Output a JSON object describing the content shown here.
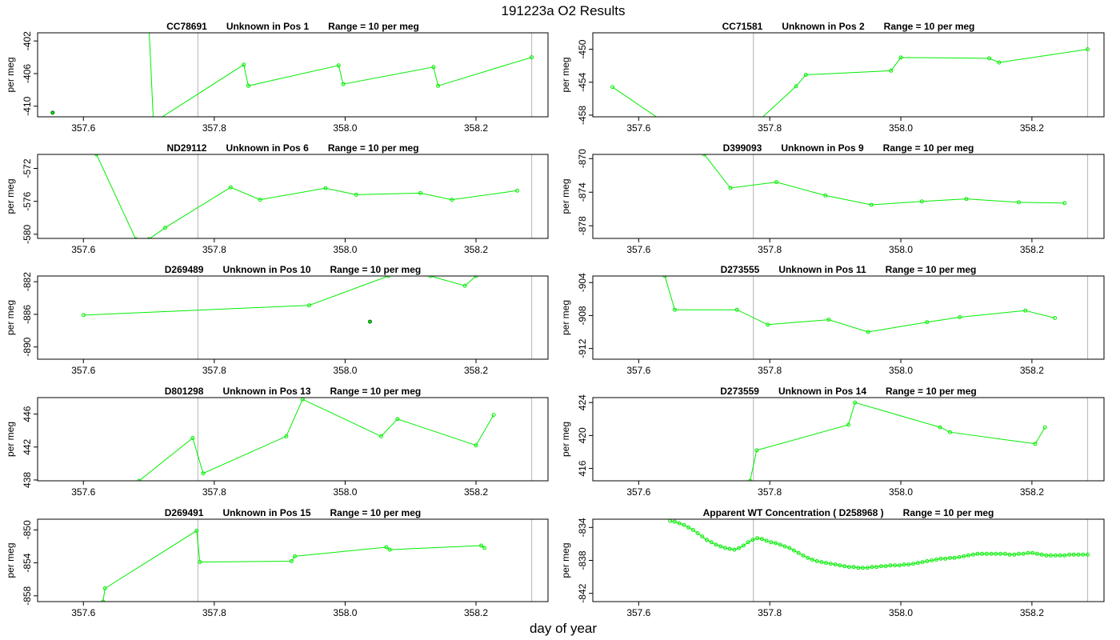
{
  "page": {
    "title": "191223a  O2 Results",
    "xlabel": "day of year"
  },
  "colors": {
    "series": "#00ee00",
    "frame": "#000000",
    "marker_line": "#bebebe",
    "text": "#000000"
  },
  "chart_data": [
    {
      "type": "line",
      "title": {
        "id": "CC78691",
        "pos": "Unknown in Pos 1",
        "range": "Range = 10 per meg"
      },
      "ylabel": "per meg",
      "xlim": [
        357.53,
        358.31
      ],
      "ylim": [
        -411.3,
        -401.0
      ],
      "xticks": [
        357.6,
        357.8,
        358.0,
        358.2
      ],
      "xtick_labels": [
        "357.6",
        "357.8",
        "358.0",
        "358.2"
      ],
      "yticks": [
        -410,
        -406,
        -402
      ],
      "ytick_labels": [
        "-410",
        "-406",
        "-402"
      ],
      "vlines": [
        357.775,
        358.285
      ],
      "x": [
        357.7,
        357.707,
        357.845,
        357.852,
        357.99,
        357.997,
        358.135,
        358.142,
        358.285
      ],
      "y": [
        -400,
        -412,
        -404.9,
        -407.5,
        -405,
        -407.3,
        -405.2,
        -407.5,
        -404
      ],
      "outliers": [
        {
          "x": 357.553,
          "y": -410.8
        }
      ]
    },
    {
      "type": "line",
      "title": {
        "id": "CC71581",
        "pos": "Unknown in Pos 2",
        "range": "Range = 10 per meg"
      },
      "ylabel": "per meg",
      "xlim": [
        357.53,
        358.31
      ],
      "ylim": [
        -458.2,
        -448.0
      ],
      "xticks": [
        357.6,
        357.8,
        358.0,
        358.2
      ],
      "xtick_labels": [
        "357.6",
        "357.8",
        "358.0",
        "358.2"
      ],
      "yticks": [
        -458,
        -454,
        -450
      ],
      "ytick_labels": [
        "-458",
        "-454",
        "-450"
      ],
      "vlines": [
        357.775,
        358.285
      ],
      "x": [
        357.56,
        357.64,
        357.78,
        357.84,
        357.855,
        357.985,
        358.0,
        358.135,
        358.15,
        358.285
      ],
      "y": [
        -454.6,
        -458.9,
        -458.9,
        -454.5,
        -453.1,
        -452.6,
        -451.0,
        -451.1,
        -451.6,
        -450.0
      ]
    },
    {
      "type": "line",
      "title": {
        "id": "ND29112",
        "pos": "Unknown in Pos 6",
        "range": "Range = 10 per meg"
      },
      "ylabel": "per meg",
      "xlim": [
        357.53,
        358.31
      ],
      "ylim": [
        -580.5,
        -570.3
      ],
      "xticks": [
        357.6,
        357.8,
        358.0,
        358.2
      ],
      "xtick_labels": [
        "357.6",
        "357.8",
        "358.0",
        "358.2"
      ],
      "yticks": [
        -580,
        -576,
        -572
      ],
      "ytick_labels": [
        "-580",
        "-576",
        "-572"
      ],
      "vlines": [
        357.775,
        358.285
      ],
      "x": [
        357.62,
        357.68,
        357.7,
        357.725,
        357.825,
        357.87,
        357.97,
        358.017,
        358.115,
        358.163,
        358.263
      ],
      "y": [
        -570.3,
        -580.6,
        -580.6,
        -579.2,
        -574.3,
        -575.8,
        -574.4,
        -575.2,
        -575.0,
        -575.8,
        -574.7
      ]
    },
    {
      "type": "line",
      "title": {
        "id": "D399093",
        "pos": "Unknown in Pos 9",
        "range": "Range = 10 per meg"
      },
      "ylabel": "per meg",
      "xlim": [
        357.53,
        358.31
      ],
      "ylim": [
        -879.5,
        -869.5
      ],
      "xticks": [
        357.6,
        357.8,
        358.0,
        358.2
      ],
      "xtick_labels": [
        "357.6",
        "357.8",
        "358.0",
        "358.2"
      ],
      "yticks": [
        -878,
        -874,
        -870
      ],
      "ytick_labels": [
        "-878",
        "-874",
        "-870"
      ],
      "vlines": [
        357.775,
        358.285
      ],
      "x": [
        357.7,
        357.74,
        357.81,
        357.885,
        357.955,
        358.032,
        358.1,
        358.18,
        358.25
      ],
      "y": [
        -869.5,
        -873.5,
        -872.8,
        -874.4,
        -875.5,
        -875.1,
        -874.8,
        -875.2,
        -875.3
      ]
    },
    {
      "type": "line",
      "title": {
        "id": "D269489",
        "pos": "Unknown in Pos 10",
        "range": "Range = 10 per meg"
      },
      "ylabel": "per meg",
      "xlim": [
        357.53,
        358.31
      ],
      "ylim": [
        -891.5,
        -881.3
      ],
      "xticks": [
        357.6,
        357.8,
        358.0,
        358.2
      ],
      "xtick_labels": [
        "357.6",
        "357.8",
        "358.0",
        "358.2"
      ],
      "yticks": [
        -890,
        -886,
        -882
      ],
      "ytick_labels": [
        "-890",
        "-886",
        "-882"
      ],
      "vlines": [
        357.775,
        358.285
      ],
      "x": [
        357.6,
        357.945,
        358.066,
        358.13,
        358.183,
        358.2
      ],
      "y": [
        -886.1,
        -884.9,
        -881.3,
        -881.3,
        -882.5,
        -881.3
      ],
      "outliers": [
        {
          "x": 358.038,
          "y": -886.9
        }
      ]
    },
    {
      "type": "line",
      "title": {
        "id": "D273555",
        "pos": "Unknown in Pos 11",
        "range": "Range = 10 per meg"
      },
      "ylabel": "per meg",
      "xlim": [
        357.53,
        358.31
      ],
      "ylim": [
        -913.3,
        -903.2
      ],
      "xticks": [
        357.6,
        357.8,
        358.0,
        358.2
      ],
      "xtick_labels": [
        "357.6",
        "357.8",
        "358.0",
        "358.2"
      ],
      "yticks": [
        -912,
        -908,
        -904
      ],
      "ytick_labels": [
        "-912",
        "-908",
        "-904"
      ],
      "vlines": [
        357.775,
        358.285
      ],
      "x": [
        357.64,
        357.655,
        357.75,
        357.797,
        357.89,
        357.95,
        358.04,
        358.09,
        358.19,
        358.235
      ],
      "y": [
        -903.2,
        -907.3,
        -907.3,
        -909.1,
        -908.5,
        -910.0,
        -908.8,
        -908.2,
        -907.4,
        -908.3
      ]
    },
    {
      "type": "line",
      "title": {
        "id": "D801298",
        "pos": "Unknown in Pos 13",
        "range": "Range = 10 per meg"
      },
      "ylabel": "per meg",
      "xlim": [
        357.53,
        358.31
      ],
      "ylim": [
        437.9,
        448.0
      ],
      "xticks": [
        357.6,
        357.8,
        358.0,
        358.2
      ],
      "xtick_labels": [
        "357.6",
        "357.8",
        "358.0",
        "358.2"
      ],
      "yticks": [
        438,
        442,
        446
      ],
      "ytick_labels": [
        "438",
        "442",
        "446"
      ],
      "vlines": [
        357.775,
        358.285
      ],
      "x": [
        357.685,
        357.767,
        357.783,
        357.91,
        357.935,
        358.055,
        358.08,
        358.2,
        358.227
      ],
      "y": [
        437.9,
        443.1,
        438.8,
        443.3,
        447.8,
        443.3,
        445.4,
        442.2,
        445.9
      ]
    },
    {
      "type": "line",
      "title": {
        "id": "D273559",
        "pos": "Unknown in Pos 14",
        "range": "Range = 10 per meg"
      },
      "ylabel": "per meg",
      "xlim": [
        357.53,
        358.31
      ],
      "ylim": [
        414.5,
        424.6
      ],
      "xticks": [
        357.6,
        357.8,
        358.0,
        358.2
      ],
      "xtick_labels": [
        "357.6",
        "357.8",
        "358.0",
        "358.2"
      ],
      "yticks": [
        416,
        420,
        424
      ],
      "ytick_labels": [
        "416",
        "420",
        "424"
      ],
      "vlines": [
        357.775,
        358.285
      ],
      "x": [
        357.77,
        357.78,
        357.92,
        357.93,
        358.06,
        358.075,
        358.205,
        358.22
      ],
      "y": [
        414.5,
        418.2,
        421.3,
        424.0,
        421.0,
        420.4,
        419.0,
        421.0
      ]
    },
    {
      "type": "line",
      "title": {
        "id": "D269491",
        "pos": "Unknown in Pos 15",
        "range": "Range = 10 per meg"
      },
      "ylabel": "per meg",
      "xlim": [
        357.53,
        358.31
      ],
      "ylim": [
        -858.7,
        -848.7
      ],
      "xticks": [
        357.6,
        357.8,
        358.0,
        358.2
      ],
      "xtick_labels": [
        "357.6",
        "357.8",
        "358.0",
        "358.2"
      ],
      "yticks": [
        -858,
        -854,
        -850
      ],
      "ytick_labels": [
        "-858",
        "-854",
        "-850"
      ],
      "vlines": [
        357.775,
        358.285
      ],
      "x": [
        357.63,
        357.633,
        357.773,
        357.778,
        357.918,
        357.923,
        358.063,
        358.068,
        358.208,
        358.213
      ],
      "y": [
        -858.7,
        -857.1,
        -850.1,
        -853.9,
        -853.8,
        -853.2,
        -852.1,
        -852.4,
        -851.9,
        -852.2
      ]
    },
    {
      "type": "line",
      "title": {
        "id": "Apparent WT Concentration ( D258968 )",
        "pos": "",
        "range": "Range = 10 per meg"
      },
      "ylabel": "per meg",
      "xlim": [
        357.53,
        358.31
      ],
      "ylim": [
        -843.0,
        -833.0
      ],
      "xticks": [
        357.6,
        357.8,
        358.0,
        358.2
      ],
      "xtick_labels": [
        "357.6",
        "357.8",
        "358.0",
        "358.2"
      ],
      "yticks": [
        -842,
        -838,
        -834
      ],
      "ytick_labels": [
        "-842",
        "-838",
        "-834"
      ],
      "vlines": [
        357.775,
        358.285
      ],
      "x": [
        357.648,
        357.655,
        357.662,
        357.669,
        357.676,
        357.683,
        357.69,
        357.697,
        357.704,
        357.711,
        357.718,
        357.725,
        357.732,
        357.739,
        357.746,
        357.753,
        357.76,
        357.767,
        357.774,
        357.781,
        357.788,
        357.795,
        357.802,
        357.809,
        357.816,
        357.823,
        357.83,
        357.837,
        357.844,
        357.851,
        357.858,
        357.865,
        357.872,
        357.879,
        357.886,
        357.893,
        357.9,
        357.907,
        357.914,
        357.921,
        357.928,
        357.935,
        357.942,
        357.949,
        357.956,
        357.963,
        357.97,
        357.977,
        357.984,
        357.991,
        357.998,
        358.005,
        358.012,
        358.019,
        358.026,
        358.033,
        358.04,
        358.047,
        358.054,
        358.061,
        358.068,
        358.075,
        358.082,
        358.089,
        358.096,
        358.103,
        358.11,
        358.117,
        358.124,
        358.131,
        358.138,
        358.145,
        358.152,
        358.159,
        358.166,
        358.173,
        358.18,
        358.187,
        358.194,
        358.201,
        358.208,
        358.215,
        358.222,
        358.229,
        358.236,
        358.243,
        358.25,
        358.257,
        358.264,
        358.271,
        358.278,
        358.285
      ],
      "y": [
        -833.2,
        -833.3,
        -833.5,
        -833.7,
        -834.0,
        -834.3,
        -834.7,
        -835.1,
        -835.5,
        -835.8,
        -836.1,
        -836.3,
        -836.5,
        -836.6,
        -836.7,
        -836.5,
        -836.2,
        -835.8,
        -835.5,
        -835.3,
        -835.4,
        -835.6,
        -835.8,
        -835.9,
        -836.1,
        -836.3,
        -836.5,
        -836.8,
        -837.1,
        -837.4,
        -837.7,
        -837.9,
        -838.1,
        -838.2,
        -838.3,
        -838.4,
        -838.5,
        -838.6,
        -838.7,
        -838.8,
        -838.8,
        -838.9,
        -838.9,
        -838.9,
        -838.8,
        -838.8,
        -838.7,
        -838.7,
        -838.6,
        -838.6,
        -838.6,
        -838.5,
        -838.5,
        -838.4,
        -838.3,
        -838.2,
        -838.1,
        -838.0,
        -837.9,
        -837.8,
        -837.8,
        -837.7,
        -837.7,
        -837.6,
        -837.5,
        -837.4,
        -837.3,
        -837.2,
        -837.2,
        -837.2,
        -837.2,
        -837.2,
        -837.2,
        -837.2,
        -837.3,
        -837.3,
        -837.2,
        -837.2,
        -837.1,
        -837.1,
        -837.2,
        -837.3,
        -837.4,
        -837.4,
        -837.4,
        -837.4,
        -837.4,
        -837.3,
        -837.3,
        -837.3,
        -837.3,
        -837.3
      ],
      "markers_all": true
    }
  ]
}
